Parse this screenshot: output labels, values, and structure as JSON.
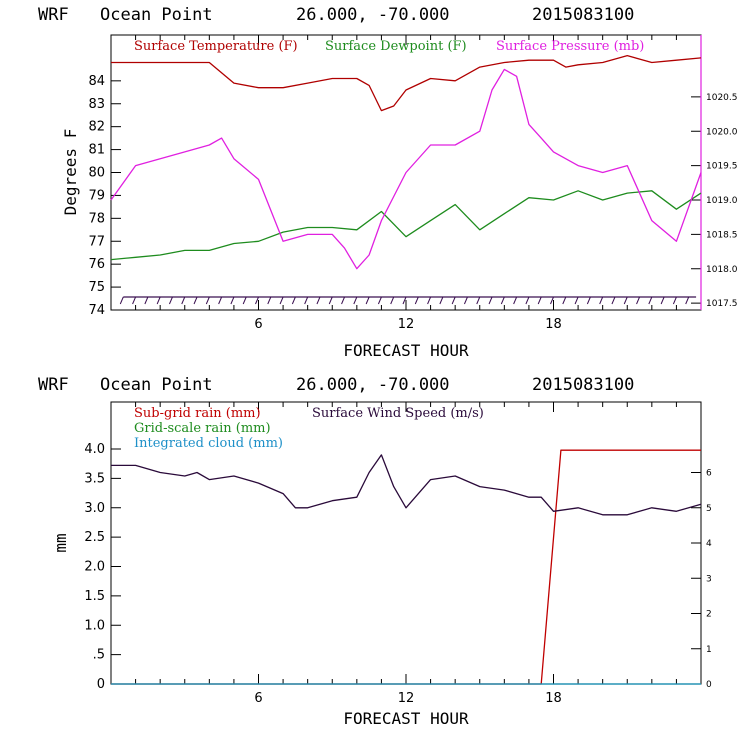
{
  "chart_data": [
    {
      "type": "line",
      "header": {
        "model": "WRF",
        "location": "Ocean Point",
        "coords": "26.000, -70.000",
        "init": "2015083100"
      },
      "xlabel": "FORECAST HOUR",
      "ylabel": "Degrees F",
      "xlim": [
        0,
        24
      ],
      "ylim": [
        74,
        86
      ],
      "xticks": [
        "6",
        "12",
        "18"
      ],
      "yticks": [
        "74",
        "75",
        "76",
        "77",
        "78",
        "79",
        "80",
        "81",
        "82",
        "83",
        "84"
      ],
      "y2lim": [
        1017.4,
        1021.4
      ],
      "y2ticks": [
        "1017.5",
        "1018.0",
        "1018.5",
        "1019.0",
        "1019.5",
        "1020.0",
        "1020.5"
      ],
      "colors": {
        "temperature": "#b00000",
        "dewpoint": "#1e8c1e",
        "pressure": "#e020e0",
        "barbs": "#3a1050"
      },
      "series": [
        {
          "name": "Surface Temperature (F)",
          "axis": "left",
          "x": [
            0,
            1,
            2,
            3,
            4,
            5,
            6,
            7,
            8,
            9,
            10,
            10.5,
            11,
            11.5,
            12,
            13,
            14,
            15,
            16,
            17,
            18,
            18.5,
            19,
            20,
            21,
            22,
            23,
            24
          ],
          "y": [
            84.8,
            84.8,
            84.8,
            84.8,
            84.8,
            83.9,
            83.7,
            83.7,
            83.9,
            84.1,
            84.1,
            83.8,
            82.7,
            82.9,
            83.6,
            84.1,
            84.0,
            84.6,
            84.8,
            84.9,
            84.9,
            84.6,
            84.7,
            84.8,
            85.1,
            84.8,
            84.9,
            85.0
          ]
        },
        {
          "name": "Surface Dewpoint (F)",
          "axis": "left",
          "x": [
            0,
            1,
            2,
            3,
            4,
            5,
            6,
            7,
            8,
            9,
            10,
            11,
            12,
            13,
            14,
            15,
            16,
            17,
            18,
            19,
            20,
            21,
            22,
            23,
            24
          ],
          "y": [
            76.2,
            76.3,
            76.4,
            76.6,
            76.6,
            76.9,
            77.0,
            77.4,
            77.6,
            77.6,
            77.5,
            78.3,
            77.2,
            77.9,
            78.6,
            77.5,
            78.2,
            78.9,
            78.8,
            79.2,
            78.8,
            79.1,
            79.2,
            78.4,
            79.1
          ]
        },
        {
          "name": "Surface Pressure (mb)",
          "axis": "right",
          "x": [
            0,
            1,
            2,
            3,
            4,
            4.5,
            5,
            6,
            7,
            8,
            9,
            9.5,
            10,
            10.5,
            11,
            12,
            13,
            14,
            15,
            15.5,
            16,
            16.5,
            17,
            17.5,
            18,
            19,
            20,
            21,
            22,
            23,
            24
          ],
          "y": [
            1019.0,
            1019.5,
            1019.6,
            1019.7,
            1019.8,
            1019.9,
            1019.6,
            1019.3,
            1018.4,
            1018.5,
            1018.5,
            1018.3,
            1018.0,
            1018.2,
            1018.7,
            1019.4,
            1019.8,
            1019.8,
            1020.0,
            1020.6,
            1020.9,
            1020.8,
            1020.1,
            1019.9,
            1019.7,
            1019.5,
            1019.4,
            1019.5,
            1018.7,
            1018.4,
            1019.4
          ]
        }
      ],
      "wind_barbs": {
        "name": "wind barbs",
        "x_step": 0.5
      }
    },
    {
      "type": "line",
      "header": {
        "model": "WRF",
        "location": "Ocean Point",
        "coords": "26.000, -70.000",
        "init": "2015083100"
      },
      "xlabel": "FORECAST HOUR",
      "ylabel": "mm",
      "xlim": [
        0,
        24
      ],
      "ylim": [
        0,
        4.8
      ],
      "xticks": [
        "6",
        "12",
        "18"
      ],
      "yticks": [
        "0",
        ".5",
        "1.0",
        "1.5",
        "2.0",
        "2.5",
        "3.0",
        "3.5",
        "4.0"
      ],
      "y2lim": [
        0,
        8
      ],
      "y2ticks": [
        "0",
        "1",
        "2",
        "3",
        "4",
        "5",
        "6"
      ],
      "colors": {
        "subgrid": "#c00000",
        "gridscale": "#1e8c1e",
        "cloud": "#1e90c8",
        "wind": "#2a0a3a"
      },
      "series": [
        {
          "name": "Sub-grid rain (mm)",
          "axis": "left",
          "x": [
            0,
            17.5,
            18.3,
            24
          ],
          "y": [
            0,
            0,
            3.98,
            3.98
          ]
        },
        {
          "name": "Grid-scale rain (mm)",
          "axis": "left",
          "x": [
            0,
            24
          ],
          "y": [
            0,
            0
          ]
        },
        {
          "name": "Integrated cloud (mm)",
          "axis": "left",
          "x": [
            0,
            24
          ],
          "y": [
            0,
            0
          ]
        },
        {
          "name": "Surface Wind Speed (m/s)",
          "axis": "right",
          "x": [
            0,
            1,
            2,
            3,
            3.5,
            4,
            5,
            6,
            7,
            7.5,
            8,
            9,
            10,
            10.5,
            11,
            11.5,
            12,
            13,
            14,
            15,
            16,
            17,
            17.5,
            18,
            19,
            20,
            21,
            22,
            23,
            24
          ],
          "y": [
            6.2,
            6.2,
            6.0,
            5.9,
            6.0,
            5.8,
            5.9,
            5.7,
            5.4,
            5.0,
            5.0,
            5.2,
            5.3,
            6.0,
            6.5,
            5.6,
            5.0,
            5.8,
            5.9,
            5.6,
            5.5,
            5.3,
            5.3,
            4.9,
            5.0,
            4.8,
            4.8,
            5.0,
            4.9,
            5.1
          ]
        }
      ]
    }
  ]
}
